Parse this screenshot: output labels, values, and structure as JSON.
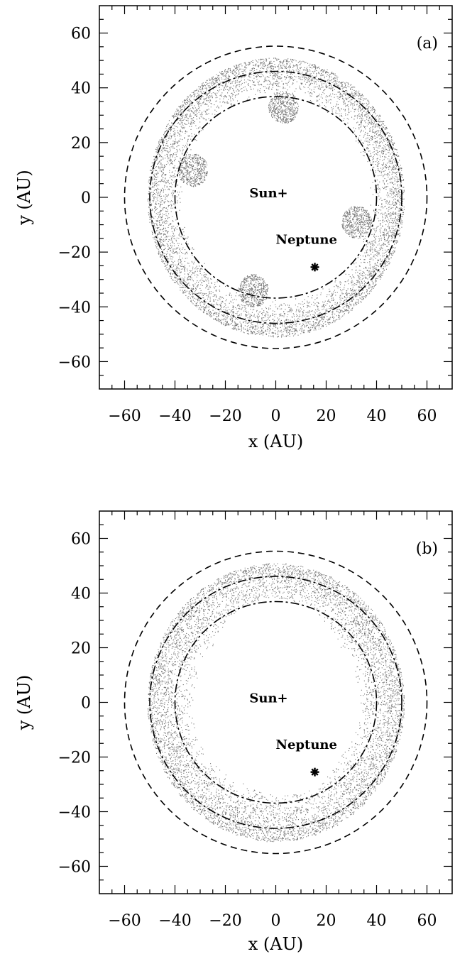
{
  "chart_data": [
    {
      "type": "scatter",
      "panel_label": "(a)",
      "xlabel": "x (AU)",
      "ylabel": "y (AU)",
      "xlim": [
        -70,
        70
      ],
      "ylim": [
        -70,
        70
      ],
      "xticks": [
        -60,
        -40,
        -20,
        0,
        20,
        40,
        60
      ],
      "yticks": [
        -60,
        -40,
        -20,
        0,
        20,
        40,
        60
      ],
      "x_tick_labels": [
        "−60",
        "−40",
        "−20",
        "0",
        "20",
        "40",
        "60"
      ],
      "y_tick_labels": [
        "−60",
        "−40",
        "−20",
        "0",
        "20",
        "40",
        "60"
      ],
      "reference_circles": [
        {
          "radius": 40,
          "style": "dash-dot"
        },
        {
          "radius": 50,
          "style": "dash-dot"
        },
        {
          "radius": 60,
          "style": "dashed"
        }
      ],
      "annotations": [
        {
          "text": "Sun+",
          "x": 0,
          "y": 0
        },
        {
          "text": "Neptune",
          "x": 15,
          "y": -17
        }
      ],
      "planet": {
        "name": "Neptune",
        "x": 15.5,
        "y": -25.5,
        "marker": "asterisk"
      },
      "particles": {
        "r_min": 37,
        "r_max": 51,
        "inner_clearings": [
          {
            "x": 0,
            "y": 12,
            "r": 22
          },
          {
            "x": -5,
            "y": -18,
            "r": 14
          }
        ],
        "count": 6500
      },
      "clumps": [
        {
          "x": 3,
          "y": 33
        },
        {
          "x": -33,
          "y": 10
        },
        {
          "x": 32,
          "y": -9
        },
        {
          "x": -9,
          "y": -34
        }
      ]
    },
    {
      "type": "scatter",
      "panel_label": "(b)",
      "xlabel": "x (AU)",
      "ylabel": "y (AU)",
      "xlim": [
        -70,
        70
      ],
      "ylim": [
        -70,
        70
      ],
      "xticks": [
        -60,
        -40,
        -20,
        0,
        20,
        40,
        60
      ],
      "yticks": [
        -60,
        -40,
        -20,
        0,
        20,
        40,
        60
      ],
      "x_tick_labels": [
        "−60",
        "−40",
        "−20",
        "0",
        "20",
        "40",
        "60"
      ],
      "y_tick_labels": [
        "−60",
        "−40",
        "−20",
        "0",
        "20",
        "40",
        "60"
      ],
      "reference_circles": [
        {
          "radius": 40,
          "style": "dash-dot"
        },
        {
          "radius": 50,
          "style": "dash-dot"
        },
        {
          "radius": 60,
          "style": "dashed"
        }
      ],
      "annotations": [
        {
          "text": "Sun+",
          "x": 0,
          "y": 0
        },
        {
          "text": "Neptune",
          "x": 15,
          "y": -17
        }
      ],
      "planet": {
        "name": "Neptune",
        "x": 15.5,
        "y": -25.5,
        "marker": "asterisk"
      },
      "particles": {
        "r_min": 32,
        "r_max": 51,
        "inner_clearings": [
          {
            "x": 0,
            "y": 12,
            "r": 26
          },
          {
            "x": 2,
            "y": -8,
            "r": 26
          }
        ],
        "count": 7000
      },
      "clumps": []
    }
  ]
}
